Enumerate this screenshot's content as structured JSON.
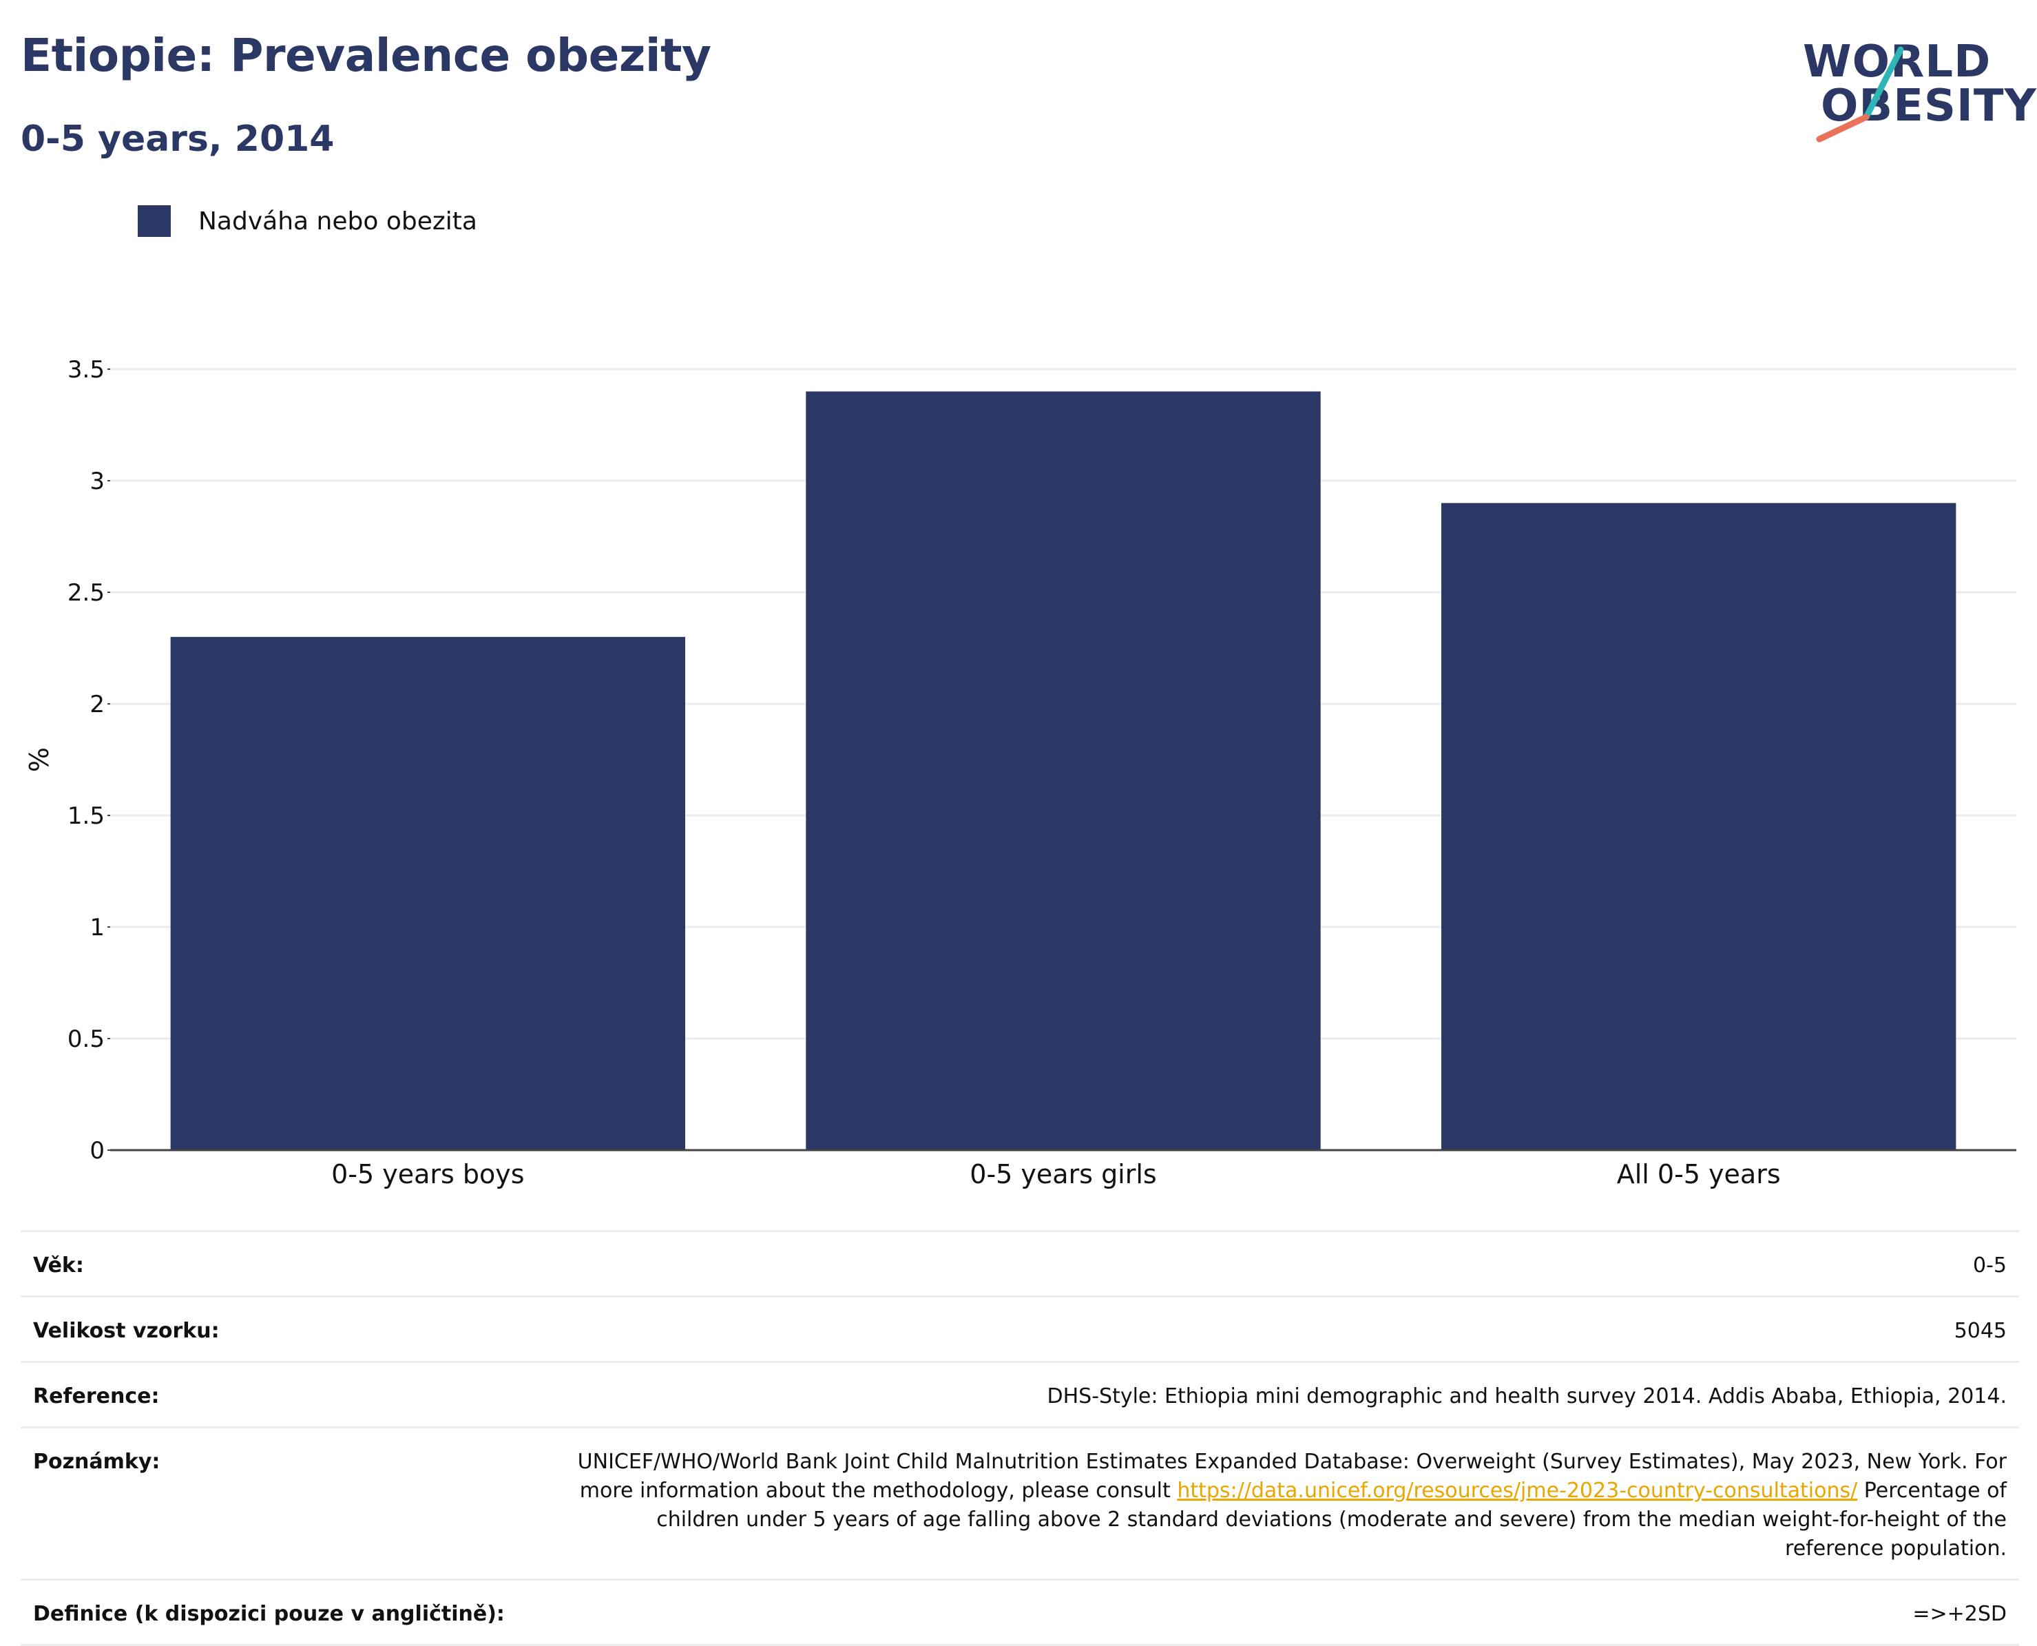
{
  "header": {
    "title": "Etiopie: Prevalence obezity",
    "subtitle": "0-5 years, 2014"
  },
  "logo": {
    "line1": "WORLD",
    "line2": "OBESITY",
    "colors": {
      "text": "#2b3764",
      "slash_teal": "#2fb5b5",
      "slash_coral": "#e8735a"
    }
  },
  "legend": {
    "label": "Nadváha nebo obezita",
    "color": "#2b3764"
  },
  "chart_data": {
    "type": "bar",
    "title": "Etiopie: Prevalence obezity",
    "subtitle": "0-5 years, 2014",
    "categories": [
      "0-5 years boys",
      "0-5 years girls",
      "All 0-5 years"
    ],
    "series": [
      {
        "name": "Nadváha nebo obezita",
        "values": [
          2.3,
          3.4,
          2.9
        ],
        "color": "#2b3764"
      }
    ],
    "ylabel": "%",
    "xlabel": "",
    "ylim": [
      0,
      3.5
    ],
    "yticks": [
      0,
      0.5,
      1,
      1.5,
      2,
      2.5,
      3,
      3.5
    ],
    "ytick_labels": [
      "0",
      "0.5",
      "1",
      "1.5",
      "2",
      "2.5",
      "3",
      "3.5"
    ],
    "grid": true,
    "legend_position": "top-left"
  },
  "meta": {
    "age": {
      "label": "Věk:",
      "value": "0-5"
    },
    "sample": {
      "label": "Velikost vzorku:",
      "value": "5045"
    },
    "reference": {
      "label": "Reference:",
      "value": "DHS-Style: Ethiopia mini demographic and health survey 2014. Addis Ababa, Ethiopia, 2014."
    },
    "notes": {
      "label": "Poznámky:",
      "text1": "UNICEF/WHO/World Bank Joint Child Malnutrition Estimates Expanded Database: Overweight (Survey Estimates), May 2023, New York. For more information about the methodology, please consult ",
      "link": "https://data.unicef.org/resources/jme-2023-country-consultations/",
      "text2": " Percentage of children under 5 years of age falling above 2 standard deviations (moderate and severe) from the median weight-for-height of the reference population."
    },
    "definition": {
      "label": "Definice (k dispozici pouze v angličtině):",
      "value": "=>+2SD"
    }
  }
}
